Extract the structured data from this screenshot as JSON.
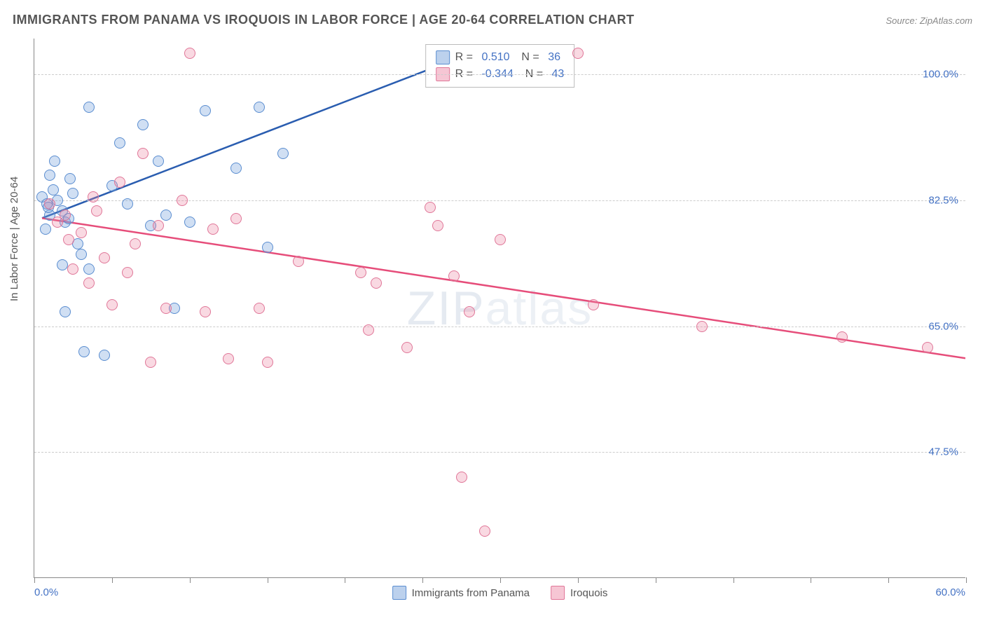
{
  "title": "IMMIGRANTS FROM PANAMA VS IROQUOIS IN LABOR FORCE | AGE 20-64 CORRELATION CHART",
  "source": "Source: ZipAtlas.com",
  "y_axis_label": "In Labor Force | Age 20-64",
  "watermark": "ZIPatlas",
  "chart": {
    "type": "scatter",
    "background_color": "#ffffff",
    "grid_color": "#cccccc",
    "axis_color": "#888888",
    "marker_radius": 8,
    "x_range": [
      0,
      60
    ],
    "y_range": [
      30,
      105
    ],
    "x_ticks": [
      0,
      5,
      10,
      15,
      20,
      25,
      30,
      35,
      40,
      45,
      50,
      55,
      60
    ],
    "x_min_label": "0.0%",
    "x_max_label": "60.0%",
    "y_gridlines": [
      47.5,
      65.0,
      82.5,
      100.0
    ],
    "y_tick_labels": [
      "47.5%",
      "65.0%",
      "82.5%",
      "100.0%"
    ],
    "series": [
      {
        "id": "panama",
        "name": "Immigrants from Panama",
        "color_fill": "rgba(121,164,220,0.35)",
        "color_stroke": "#5a8dd0",
        "trend_color": "#2a5db0",
        "trend_width": 2.5,
        "R": "0.510",
        "N": "36",
        "trend": {
          "x1": 0.5,
          "y1": 80.0,
          "x2": 27.0,
          "y2": 102.0
        },
        "points": [
          [
            0.5,
            83.0
          ],
          [
            0.8,
            82.0
          ],
          [
            1.0,
            80.5
          ],
          [
            1.2,
            84.0
          ],
          [
            1.5,
            82.5
          ],
          [
            1.8,
            81.0
          ],
          [
            2.0,
            79.5
          ],
          [
            2.2,
            80.0
          ],
          [
            2.5,
            83.5
          ],
          [
            0.7,
            78.5
          ],
          [
            1.0,
            86.0
          ],
          [
            1.3,
            88.0
          ],
          [
            3.5,
            95.5
          ],
          [
            2.8,
            76.5
          ],
          [
            3.0,
            75.0
          ],
          [
            3.5,
            73.0
          ],
          [
            2.0,
            67.0
          ],
          [
            3.2,
            61.5
          ],
          [
            4.5,
            61.0
          ],
          [
            5.0,
            84.5
          ],
          [
            5.5,
            90.5
          ],
          [
            6.0,
            82.0
          ],
          [
            7.0,
            93.0
          ],
          [
            7.5,
            79.0
          ],
          [
            8.0,
            88.0
          ],
          [
            8.5,
            80.5
          ],
          [
            9.0,
            67.5
          ],
          [
            10.0,
            79.5
          ],
          [
            11.0,
            95.0
          ],
          [
            13.0,
            87.0
          ],
          [
            14.5,
            95.5
          ],
          [
            15.0,
            76.0
          ],
          [
            16.0,
            89.0
          ],
          [
            1.8,
            73.5
          ],
          [
            2.3,
            85.5
          ],
          [
            0.9,
            81.5
          ]
        ]
      },
      {
        "id": "iroquois",
        "name": "Iroquois",
        "color_fill": "rgba(236,128,160,0.3)",
        "color_stroke": "#e07698",
        "trend_color": "#e64d7a",
        "trend_width": 2.5,
        "R": "-0.344",
        "N": "43",
        "trend": {
          "x1": 0.5,
          "y1": 80.0,
          "x2": 60.0,
          "y2": 60.5
        },
        "points": [
          [
            1.5,
            79.5
          ],
          [
            2.0,
            80.5
          ],
          [
            2.5,
            73.0
          ],
          [
            3.0,
            78.0
          ],
          [
            3.5,
            71.0
          ],
          [
            4.0,
            81.0
          ],
          [
            4.5,
            74.5
          ],
          [
            5.0,
            68.0
          ],
          [
            5.5,
            85.0
          ],
          [
            6.0,
            72.5
          ],
          [
            7.0,
            89.0
          ],
          [
            7.5,
            60.0
          ],
          [
            8.0,
            79.0
          ],
          [
            8.5,
            67.5
          ],
          [
            9.5,
            82.5
          ],
          [
            10.0,
            103.0
          ],
          [
            11.0,
            67.0
          ],
          [
            11.5,
            78.5
          ],
          [
            12.5,
            60.5
          ],
          [
            13.0,
            80.0
          ],
          [
            14.5,
            67.5
          ],
          [
            15.0,
            60.0
          ],
          [
            17.0,
            74.0
          ],
          [
            21.0,
            72.5
          ],
          [
            21.5,
            64.5
          ],
          [
            22.0,
            71.0
          ],
          [
            24.0,
            62.0
          ],
          [
            25.5,
            81.5
          ],
          [
            26.0,
            79.0
          ],
          [
            27.0,
            72.0
          ],
          [
            27.5,
            44.0
          ],
          [
            28.0,
            67.0
          ],
          [
            29.0,
            36.5
          ],
          [
            30.0,
            77.0
          ],
          [
            35.0,
            103.0
          ],
          [
            36.0,
            68.0
          ],
          [
            43.0,
            65.0
          ],
          [
            52.0,
            63.5
          ],
          [
            57.5,
            62.0
          ],
          [
            1.0,
            82.0
          ],
          [
            2.2,
            77.0
          ],
          [
            6.5,
            76.5
          ],
          [
            3.8,
            83.0
          ]
        ]
      }
    ],
    "bottom_legend": [
      {
        "swatch": "blue",
        "label": "Immigrants from Panama"
      },
      {
        "swatch": "pink",
        "label": "Iroquois"
      }
    ]
  }
}
